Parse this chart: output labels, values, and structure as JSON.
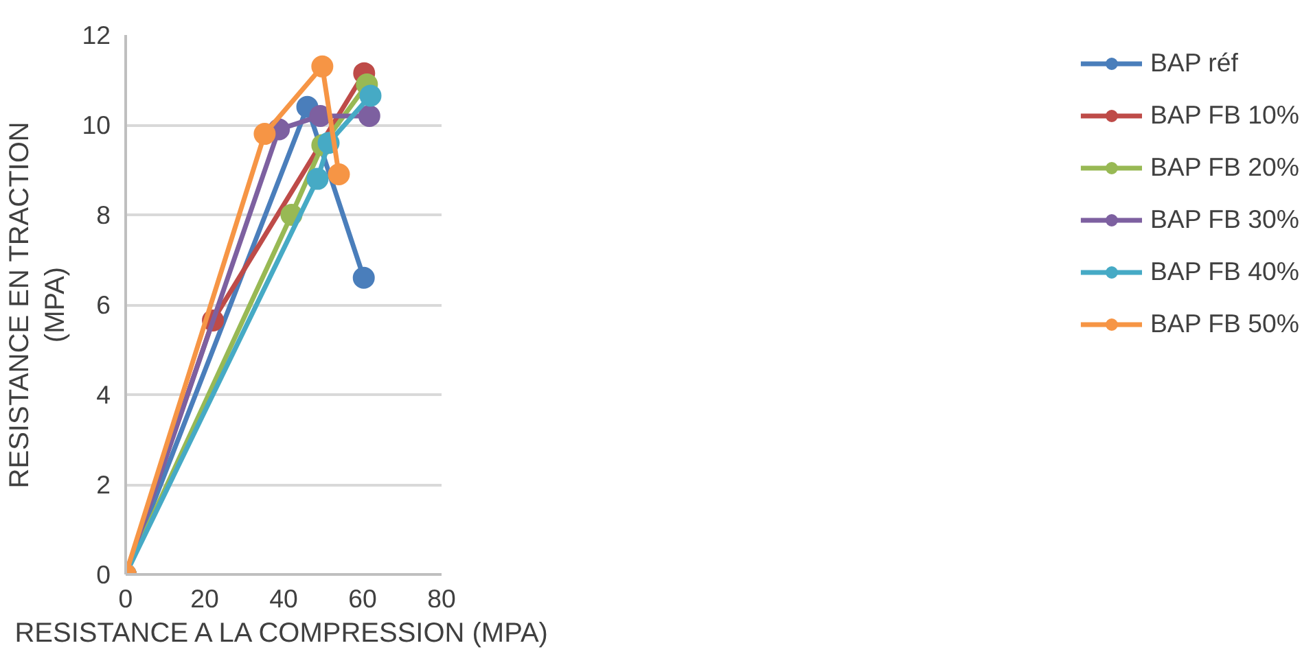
{
  "chart_data": {
    "type": "line",
    "xlabel": "RESISTANCE A LA COMPRESSION (MPA)",
    "ylabel": "RESISTANCE EN TRACTION\n(MPA)",
    "xlim": [
      0,
      80
    ],
    "xticks": [
      0,
      20,
      40,
      60,
      80
    ],
    "ylim": [
      0,
      12
    ],
    "yticks": [
      0,
      2,
      4,
      6,
      8,
      10,
      12
    ],
    "grid": "y",
    "legend": "right",
    "marker": "circle",
    "line_style": "solid",
    "series": [
      {
        "name": "BAP réf",
        "color": "#4a7ebb",
        "x": [
          0,
          46.0,
          60.3
        ],
        "values": [
          0,
          10.4,
          6.6
        ]
      },
      {
        "name": "BAP FB 10%",
        "color": "#be4b48",
        "x": [
          0,
          22.1,
          60.4
        ],
        "values": [
          0,
          5.65,
          11.15
        ]
      },
      {
        "name": "BAP FB 20%",
        "color": "#98b954",
        "x": [
          0,
          42.0,
          49.8,
          61.1
        ],
        "values": [
          0,
          8.0,
          9.55,
          10.9
        ]
      },
      {
        "name": "BAP FB 30%",
        "color": "#7d60a0",
        "x": [
          0,
          38.8,
          49.3,
          61.7
        ],
        "values": [
          0,
          9.9,
          10.2,
          10.2
        ]
      },
      {
        "name": "BAP FB 40%",
        "color": "#46aac5",
        "x": [
          0,
          48.6,
          51.4,
          62.0
        ],
        "values": [
          0,
          8.8,
          9.6,
          10.65
        ]
      },
      {
        "name": "BAP FB 50%",
        "color": "#f69545",
        "x": [
          0,
          35.2,
          49.8,
          54.0
        ],
        "values": [
          0,
          9.8,
          11.3,
          8.9
        ]
      }
    ]
  }
}
